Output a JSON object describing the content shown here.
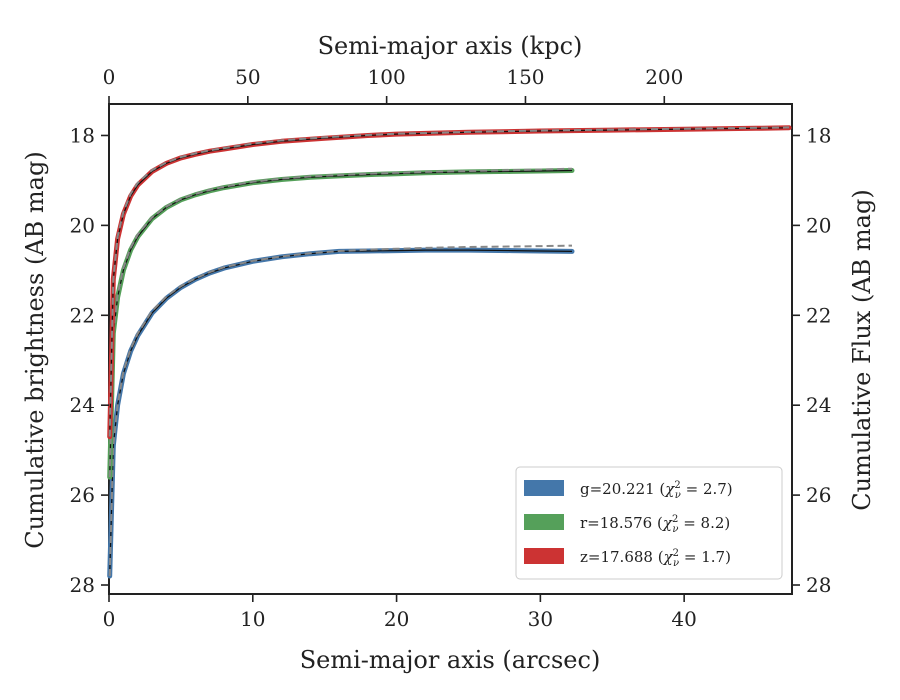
{
  "chart_data": {
    "type": "line",
    "xlabel": "Semi-major axis (arcsec)",
    "ylabel": "Cumulative brightness (AB mag)",
    "top_xlabel": "Semi-major axis (kpc)",
    "right_ylabel": "Cumulative Flux (AB mag)",
    "xlim": [
      0,
      47.5
    ],
    "ylim": [
      28.2,
      17.3
    ],
    "y_inverted": true,
    "top_xlim": [
      0,
      246
    ],
    "x_ticks": [
      0,
      10,
      20,
      30,
      40
    ],
    "x_tick_labels": [
      "0",
      "10",
      "20",
      "30",
      "40"
    ],
    "y_ticks": [
      18,
      20,
      22,
      24,
      26,
      28
    ],
    "y_tick_labels": [
      "18",
      "20",
      "22",
      "24",
      "26",
      "28"
    ],
    "top_x_ticks": [
      0,
      50,
      100,
      150,
      200
    ],
    "top_x_tick_labels": [
      "0",
      "50",
      "100",
      "150",
      "200"
    ],
    "legend_position": "lower right",
    "series": [
      {
        "name": "g=20.221 (χ²ᵥ = 2.7)",
        "label_main": "g=20.221 (",
        "label_chi": "χ",
        "label_sup": "2",
        "label_sub": "ν",
        "label_rest": " = 2.7)",
        "color": "#4477aa",
        "x": [
          0.05,
          0.3,
          0.6,
          1.0,
          1.5,
          2.0,
          3.0,
          4.0,
          5.0,
          6.0,
          7.0,
          8.0,
          10.0,
          12.0,
          14.0,
          16.0,
          18.0,
          20.0,
          22.0,
          25.0,
          28.0,
          30.0,
          32.2
        ],
        "y": [
          27.8,
          24.9,
          24.0,
          23.3,
          22.8,
          22.45,
          21.95,
          21.62,
          21.38,
          21.2,
          21.06,
          20.95,
          20.8,
          20.7,
          20.63,
          20.58,
          20.57,
          20.56,
          20.55,
          20.55,
          20.56,
          20.57,
          20.58
        ],
        "model_y": [
          27.8,
          24.9,
          24.0,
          23.25,
          22.75,
          22.4,
          21.9,
          21.58,
          21.35,
          21.18,
          21.04,
          20.93,
          20.79,
          20.69,
          20.62,
          20.57,
          20.54,
          20.52,
          20.5,
          20.48,
          20.47,
          20.46,
          20.45
        ]
      },
      {
        "name": "r=18.576 (χ²ᵥ = 8.2)",
        "label_main": "r=18.576 (",
        "label_chi": "χ",
        "label_sup": "2",
        "label_sub": "ν",
        "label_rest": " = 8.2)",
        "color": "#55a05a",
        "x": [
          0.05,
          0.3,
          0.6,
          1.0,
          1.5,
          2.0,
          3.0,
          4.0,
          5.0,
          6.0,
          7.0,
          8.0,
          10.0,
          12.0,
          14.0,
          16.0,
          18.0,
          20.0,
          22.0,
          25.0,
          28.0,
          30.0,
          32.2
        ],
        "y": [
          25.6,
          22.4,
          21.6,
          21.0,
          20.55,
          20.25,
          19.85,
          19.6,
          19.43,
          19.32,
          19.23,
          19.16,
          19.05,
          18.98,
          18.93,
          18.9,
          18.87,
          18.85,
          18.83,
          18.81,
          18.8,
          18.79,
          18.78
        ],
        "model_y": [
          25.6,
          22.4,
          21.55,
          20.95,
          20.5,
          20.2,
          19.82,
          19.58,
          19.41,
          19.3,
          19.21,
          19.14,
          19.03,
          18.96,
          18.91,
          18.88,
          18.85,
          18.83,
          18.81,
          18.79,
          18.77,
          18.76,
          18.74
        ]
      },
      {
        "name": "z=17.688 (χ²ᵥ = 1.7)",
        "label_main": "z=17.688 (",
        "label_chi": "χ",
        "label_sup": "2",
        "label_sub": "ν",
        "label_rest": " = 1.7)",
        "color": "#cc3333",
        "x": [
          0.05,
          0.3,
          0.6,
          1.0,
          1.5,
          2.0,
          3.0,
          4.0,
          5.0,
          6.0,
          7.0,
          8.0,
          10.0,
          12.0,
          15.0,
          18.0,
          20.0,
          25.0,
          30.0,
          35.0,
          40.0,
          45.0,
          47.3
        ],
        "y": [
          24.7,
          21.2,
          20.3,
          19.75,
          19.35,
          19.1,
          18.8,
          18.62,
          18.5,
          18.42,
          18.35,
          18.3,
          18.2,
          18.13,
          18.06,
          18.0,
          17.97,
          17.93,
          17.9,
          17.88,
          17.86,
          17.84,
          17.83
        ],
        "model_y": [
          24.7,
          21.2,
          20.25,
          19.7,
          19.3,
          19.05,
          18.77,
          18.6,
          18.48,
          18.4,
          18.33,
          18.28,
          18.18,
          18.11,
          18.04,
          17.99,
          17.96,
          17.92,
          17.89,
          17.87,
          17.85,
          17.83,
          17.82
        ]
      }
    ]
  }
}
